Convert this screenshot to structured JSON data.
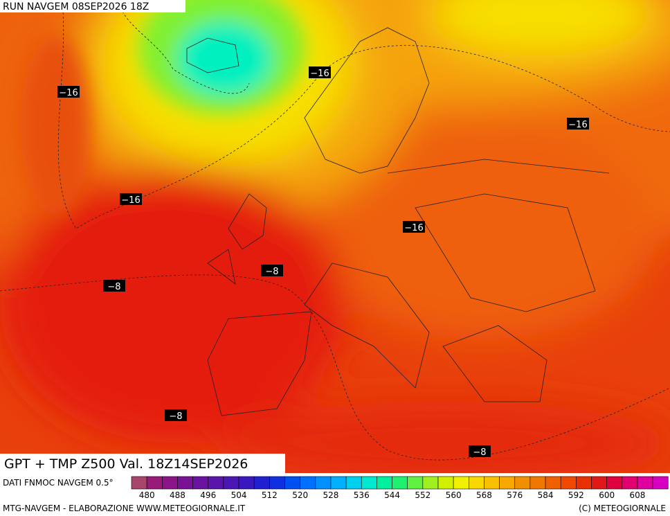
{
  "header": {
    "run": "RUN NAVGEM 08SEP2026 18Z",
    "caption": "GPT + TMP Z500 Val. 18Z14SEP2026"
  },
  "contour_labels": [
    "−16",
    "−16",
    "−16",
    "−16",
    "−16",
    "−8",
    "−8",
    "−8",
    "−8"
  ],
  "colorbar": {
    "source": "DATI FNMOC NAVGEM 0.5°",
    "colors": [
      "#a8456a",
      "#9a1a7a",
      "#8a1488",
      "#7a1296",
      "#6a12a0",
      "#5a14aa",
      "#4a16b4",
      "#3a18c0",
      "#2020d0",
      "#1030e0",
      "#0050f0",
      "#0070ff",
      "#0090ff",
      "#00b0ff",
      "#00d0f0",
      "#00e8d0",
      "#00f0a0",
      "#20f070",
      "#60f040",
      "#a0f020",
      "#d0f000",
      "#f0f000",
      "#f8d800",
      "#f8c000",
      "#f8a800",
      "#f09000",
      "#f07800",
      "#f06000",
      "#f04800",
      "#e83000",
      "#e01818",
      "#e00040",
      "#e00070",
      "#e000a0",
      "#d800c0"
    ],
    "ticks": [
      480,
      488,
      496,
      504,
      512,
      520,
      528,
      536,
      544,
      552,
      560,
      568,
      576,
      584,
      592,
      600,
      608
    ]
  },
  "footer": {
    "left": "MTG-NAVGEM - ELABORAZIONE WWW.METEOGIORNALE.IT",
    "right": "(C) METEOGIORNALE"
  }
}
